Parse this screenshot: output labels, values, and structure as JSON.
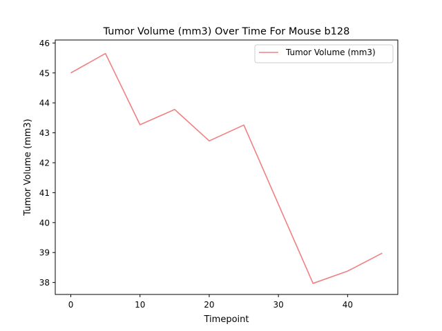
{
  "chart_data": {
    "type": "line",
    "title": "Tumor Volume (mm3) Over Time For Mouse b128",
    "xlabel": "Timepoint",
    "ylabel": "Tumor Volume (mm3)",
    "xlim": [
      -2.25,
      47.25
    ],
    "ylim": [
      37.6,
      46.1
    ],
    "xticks": [
      0,
      10,
      20,
      30,
      40
    ],
    "yticks": [
      38,
      39,
      40,
      41,
      42,
      43,
      44,
      45,
      46
    ],
    "legend_position": "top-right",
    "grid": false,
    "series": [
      {
        "name": "Tumor Volume (mm3)",
        "color": "#f08080",
        "x": [
          0,
          5,
          10,
          15,
          20,
          25,
          30,
          35,
          40,
          45
        ],
        "y": [
          45.0,
          45.65,
          43.27,
          43.78,
          42.73,
          43.26,
          40.61,
          37.97,
          38.38,
          38.98
        ]
      }
    ]
  }
}
